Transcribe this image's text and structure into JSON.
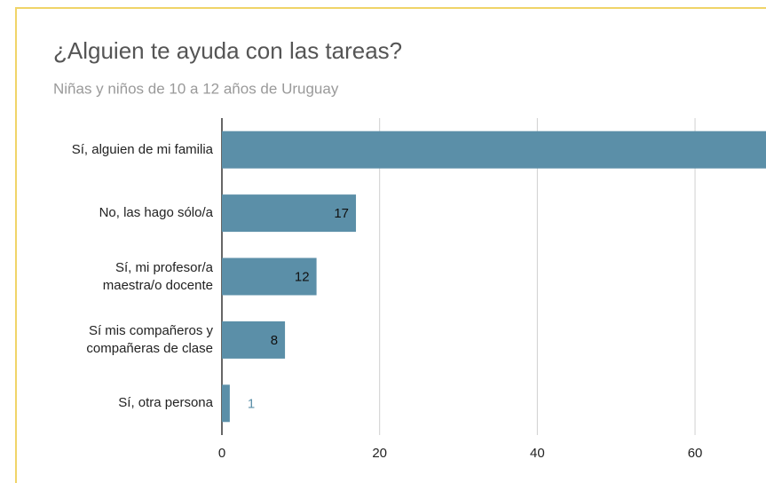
{
  "chart_data": {
    "type": "bar",
    "orientation": "horizontal",
    "title": "¿Alguien te ayuda con las tareas?",
    "subtitle": "Niñas y niños de 10 a 12 años de Uruguay",
    "categories": [
      "Sí, alguien de mi familia",
      "No, las hago sólo/a",
      "Sí, mi profesor/a maestra/o docente",
      "Sí mis compañeros y compañeras de clase",
      "Sí, otra persona"
    ],
    "values": [
      70,
      17,
      12,
      8,
      1
    ],
    "color": "#5b8fa8",
    "xlim": [
      0,
      69
    ],
    "xticks": [
      0,
      20,
      40,
      60
    ],
    "grid": true
  }
}
